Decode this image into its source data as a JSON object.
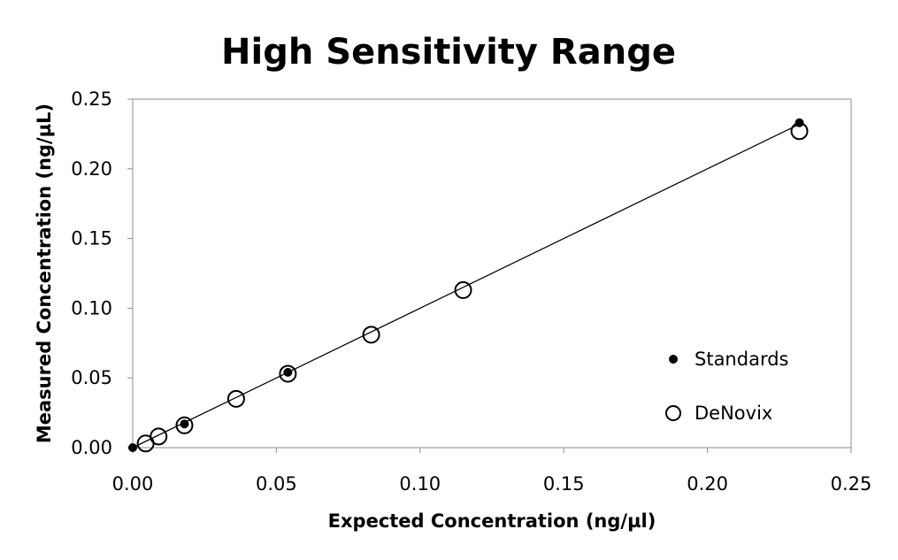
{
  "chart_data": {
    "type": "scatter",
    "title": "High Sensitivity Range",
    "xlabel": "Expected Concentration (ng/µl)",
    "ylabel": "Measured Concentration (ng/µL)",
    "xlim": [
      0,
      0.25
    ],
    "ylim": [
      0,
      0.25
    ],
    "x_ticks": [
      "0.00",
      "0.05",
      "0.10",
      "0.15",
      "0.20",
      "0.25"
    ],
    "y_ticks": [
      "0.00",
      "0.05",
      "0.10",
      "0.15",
      "0.20",
      "0.25"
    ],
    "grid": false,
    "legend_position": "right",
    "series": [
      {
        "name": "Standards",
        "marker": "filled-circle",
        "color": "#000000",
        "points": [
          {
            "x": 0.0,
            "y": 0.0
          },
          {
            "x": 0.018,
            "y": 0.017
          },
          {
            "x": 0.054,
            "y": 0.054
          },
          {
            "x": 0.232,
            "y": 0.233
          }
        ]
      },
      {
        "name": "DeNovix",
        "marker": "open-circle",
        "color": "#000000",
        "points": [
          {
            "x": 0.0045,
            "y": 0.003
          },
          {
            "x": 0.009,
            "y": 0.008
          },
          {
            "x": 0.018,
            "y": 0.016
          },
          {
            "x": 0.036,
            "y": 0.035
          },
          {
            "x": 0.054,
            "y": 0.053
          },
          {
            "x": 0.083,
            "y": 0.081
          },
          {
            "x": 0.115,
            "y": 0.113
          },
          {
            "x": 0.232,
            "y": 0.227
          }
        ]
      }
    ],
    "trendline": {
      "from": {
        "x": 0.0,
        "y": 0.0
      },
      "to": {
        "x": 0.232,
        "y": 0.232
      }
    }
  }
}
